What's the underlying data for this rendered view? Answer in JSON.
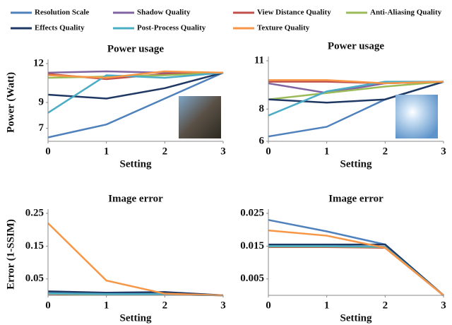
{
  "chart_data": [
    {
      "type": "line",
      "title": "Power usage",
      "x_label": "Setting",
      "y_label": "Power (Watt)",
      "x": [
        0,
        1,
        2,
        3
      ],
      "xlim": [
        0,
        3
      ],
      "xticks": [
        0,
        1,
        2,
        3
      ],
      "ylim": [
        6,
        12
      ],
      "yticks": [
        7,
        9,
        12
      ],
      "series": [
        {
          "name": "Resolution Scale",
          "color": "#4f81bd",
          "values": [
            6.3,
            7.3,
            9.3,
            11.3
          ]
        },
        {
          "name": "Shadow Quality",
          "color": "#8064a2",
          "values": [
            11.3,
            11.4,
            11.3,
            11.3
          ]
        },
        {
          "name": "View Distance Quality",
          "color": "#c0504d",
          "values": [
            11.2,
            10.8,
            11.2,
            11.3
          ]
        },
        {
          "name": "Anti-Aliasing Quality",
          "color": "#9bbb59",
          "values": [
            10.9,
            11.0,
            11.1,
            11.3
          ]
        },
        {
          "name": "Effects Quality",
          "color": "#1f3864",
          "values": [
            9.6,
            9.3,
            10.1,
            11.3
          ]
        },
        {
          "name": "Post-Process Quality",
          "color": "#4bacc6",
          "values": [
            8.2,
            11.1,
            10.9,
            11.3
          ]
        },
        {
          "name": "Texture Quality",
          "color": "#f79646",
          "values": [
            11.1,
            10.9,
            11.4,
            11.3
          ]
        }
      ]
    },
    {
      "type": "line",
      "title": "Power usage",
      "x_label": "Setting",
      "x": [
        0,
        1,
        2,
        3
      ],
      "xlim": [
        0,
        3
      ],
      "xticks": [
        0,
        1,
        2,
        3
      ],
      "ylim": [
        6,
        11
      ],
      "yticks": [
        6,
        8,
        11
      ],
      "series": [
        {
          "values": [
            6.3,
            6.9,
            8.6,
            9.7
          ]
        },
        {
          "values": [
            9.6,
            9.0,
            9.6,
            9.7
          ]
        },
        {
          "values": [
            9.7,
            9.7,
            9.6,
            9.7
          ]
        },
        {
          "values": [
            8.6,
            9.0,
            9.4,
            9.7
          ]
        },
        {
          "values": [
            8.6,
            8.4,
            8.6,
            9.7
          ]
        },
        {
          "values": [
            7.6,
            9.1,
            9.7,
            9.7
          ]
        },
        {
          "values": [
            9.8,
            9.8,
            9.6,
            9.7
          ]
        }
      ]
    },
    {
      "type": "line",
      "title": "Image error",
      "x_label": "Setting",
      "y_label": "Error (1-SSIM)",
      "x": [
        0,
        1,
        2,
        3
      ],
      "xlim": [
        0,
        3
      ],
      "xticks": [
        0,
        1,
        2,
        3
      ],
      "ylim": [
        0,
        0.25
      ],
      "yticks": [
        0.05,
        0.15,
        0.25
      ],
      "series": [
        {
          "values": [
            0.01,
            0.005,
            0.005,
            0
          ]
        },
        {
          "values": [
            0.005,
            0.003,
            0.003,
            0
          ]
        },
        {
          "values": [
            0.004,
            0.003,
            0.003,
            0
          ]
        },
        {
          "values": [
            0.005,
            0.003,
            0.003,
            0
          ]
        },
        {
          "values": [
            0.012,
            0.008,
            0.01,
            0
          ]
        },
        {
          "values": [
            0.006,
            0.004,
            0.004,
            0
          ]
        },
        {
          "values": [
            0.22,
            0.045,
            0.005,
            0
          ]
        }
      ]
    },
    {
      "type": "line",
      "title": "Image error",
      "x_label": "Setting",
      "x": [
        0,
        1,
        2,
        3
      ],
      "xlim": [
        0,
        3
      ],
      "xticks": [
        0,
        1,
        2,
        3
      ],
      "ylim": [
        0,
        0.025
      ],
      "yticks": [
        0.005,
        0.015,
        0.025
      ],
      "series": [
        {
          "values": [
            0.023,
            0.0195,
            0.0155,
            0
          ]
        },
        {
          "values": [
            0.0148,
            0.0148,
            0.0146,
            0
          ]
        },
        {
          "values": [
            0.0147,
            0.0147,
            0.0145,
            0
          ]
        },
        {
          "values": [
            0.0149,
            0.0149,
            0.0147,
            0
          ]
        },
        {
          "values": [
            0.0155,
            0.0155,
            0.0155,
            0
          ]
        },
        {
          "values": [
            0.015,
            0.015,
            0.0148,
            0
          ]
        },
        {
          "values": [
            0.0198,
            0.0182,
            0.0145,
            0
          ]
        }
      ]
    }
  ]
}
